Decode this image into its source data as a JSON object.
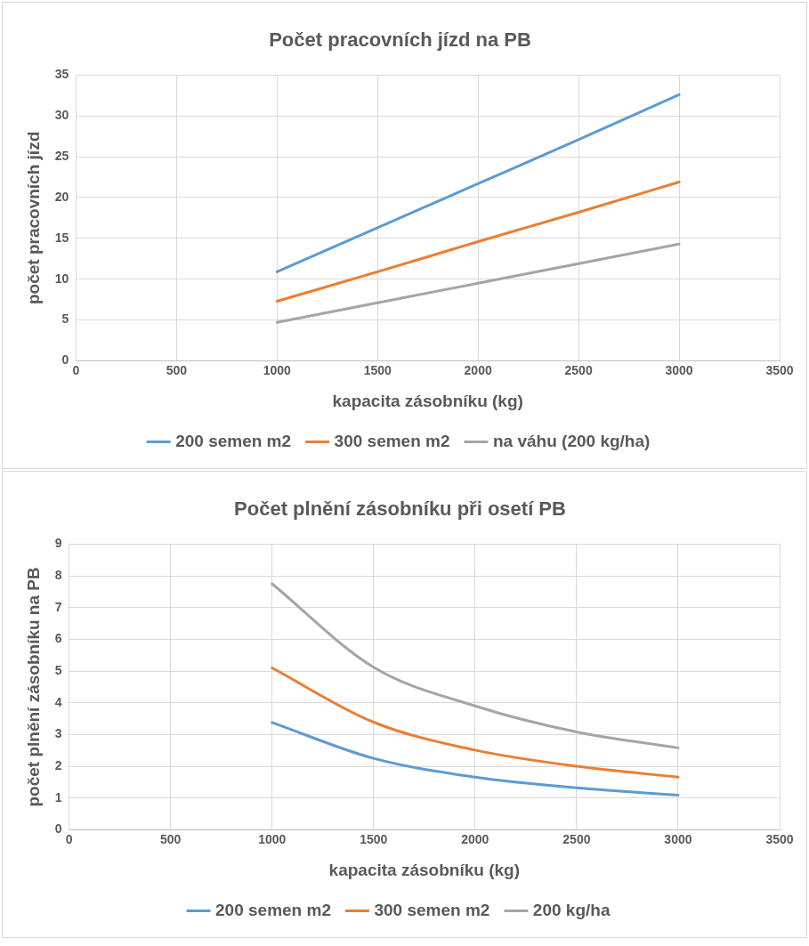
{
  "chart_data": [
    {
      "type": "line",
      "title": "Počet pracovních jízd na PB",
      "xlabel": "kapacita zásobníku (kg)",
      "ylabel": "počet pracovních jízd",
      "x": [
        1000,
        1500,
        2000,
        2500,
        3000
      ],
      "series": [
        {
          "name": "200 semen m2",
          "color": "#5b9bd5",
          "values": [
            10.9,
            16.3,
            21.7,
            27.1,
            32.6
          ]
        },
        {
          "name": "300 semen m2",
          "color": "#ed7d31",
          "values": [
            7.3,
            10.9,
            14.6,
            18.2,
            21.9
          ]
        },
        {
          "name": "na váhu (200 kg/ha)",
          "color": "#a5a5a5",
          "values": [
            4.7,
            7.1,
            9.5,
            11.9,
            14.3
          ]
        }
      ],
      "xlim": [
        0,
        3500
      ],
      "xticks": [
        0,
        500,
        1000,
        1500,
        2000,
        2500,
        3000,
        3500
      ],
      "ylim": [
        0,
        35
      ],
      "yticks": [
        0,
        5,
        10,
        15,
        20,
        25,
        30,
        35
      ],
      "grid": true,
      "legend": "bottom",
      "marker": "none",
      "line_style": "solid"
    },
    {
      "type": "line",
      "title": "Počet plnění zásobníku při osetí PB",
      "xlabel": "kapacita zásobníku (kg)",
      "ylabel": "počet plnění zásobníku na PB",
      "x": [
        1000,
        1500,
        2000,
        2500,
        3000
      ],
      "series": [
        {
          "name": "200 semen m2",
          "color": "#5b9bd5",
          "values": [
            3.38,
            2.25,
            1.66,
            1.32,
            1.09
          ]
        },
        {
          "name": "300 semen m2",
          "color": "#ed7d31",
          "values": [
            5.1,
            3.39,
            2.51,
            2.0,
            1.66
          ]
        },
        {
          "name": "200 kg/ha",
          "color": "#a5a5a5",
          "values": [
            7.75,
            5.12,
            3.9,
            3.08,
            2.58
          ]
        }
      ],
      "xlim": [
        0,
        3500
      ],
      "xticks": [
        0,
        500,
        1000,
        1500,
        2000,
        2500,
        3000,
        3500
      ],
      "ylim": [
        0,
        9
      ],
      "yticks": [
        0,
        1,
        2,
        3,
        4,
        5,
        6,
        7,
        8,
        9
      ],
      "grid": true,
      "legend": "bottom",
      "marker": "none",
      "line_style": "solid"
    }
  ]
}
